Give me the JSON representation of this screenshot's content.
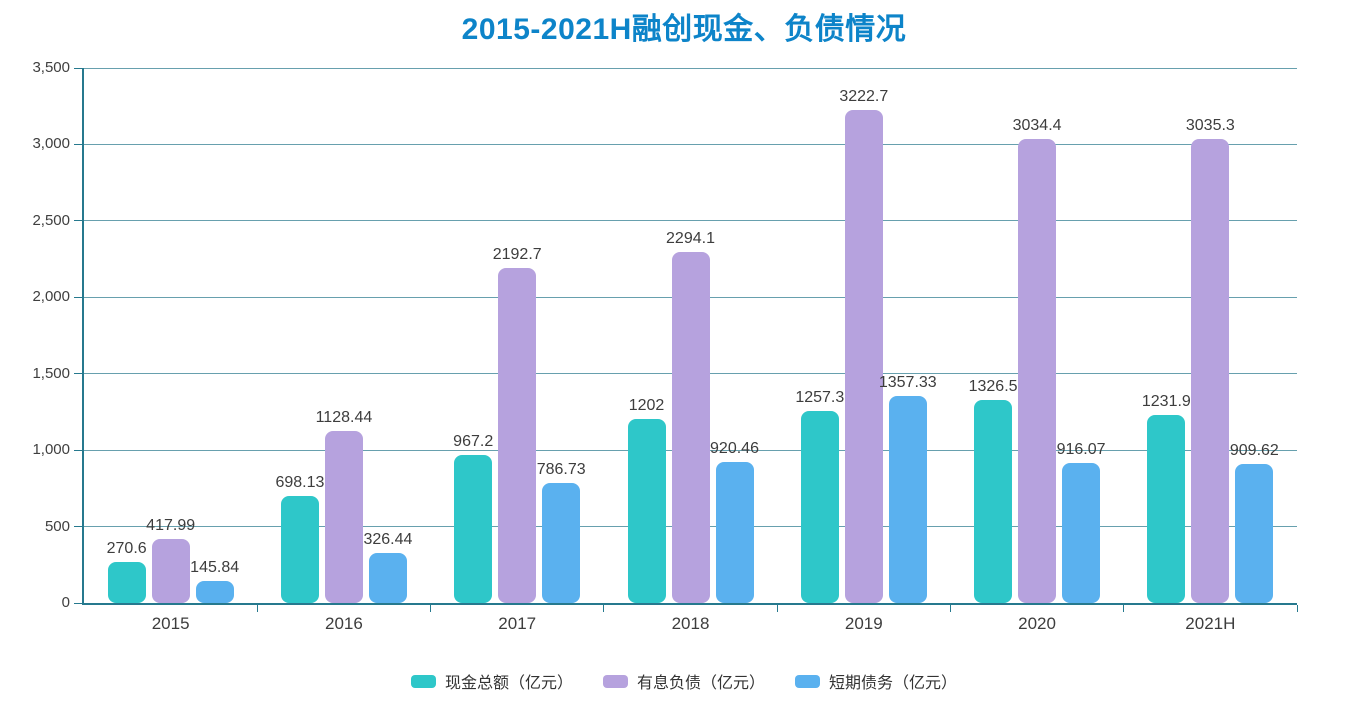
{
  "title": "2015-2021H融创现金、负债情况",
  "colors": {
    "title": "#0d84c9",
    "axis_line": "#26798e",
    "grid_line": "#67a0ae",
    "label_text": "#3d3d3d"
  },
  "chart_data": {
    "type": "bar",
    "title": "2015-2021H融创现金、负债情况",
    "categories": [
      "2015",
      "2016",
      "2017",
      "2018",
      "2019",
      "2020",
      "2021H"
    ],
    "series": [
      {
        "name": "现金总额（亿元）",
        "color": "#2ec7c9",
        "values": [
          270.6,
          698.13,
          967.2,
          1202,
          1257.3,
          1326.5,
          1231.9
        ]
      },
      {
        "name": "有息负债（亿元）",
        "color": "#b6a2de",
        "values": [
          417.99,
          1128.44,
          2192.7,
          2294.1,
          3222.7,
          3034.4,
          3035.3
        ]
      },
      {
        "name": "短期债务（亿元）",
        "color": "#5ab1ef",
        "values": [
          145.84,
          326.44,
          786.73,
          920.46,
          1357.33,
          916.07,
          909.62
        ]
      }
    ],
    "xlabel": "",
    "ylabel": "",
    "ylim": [
      0,
      3500
    ],
    "ytick_step": 500,
    "grid": true,
    "bar_labels": true,
    "legend_position": "bottom"
  }
}
